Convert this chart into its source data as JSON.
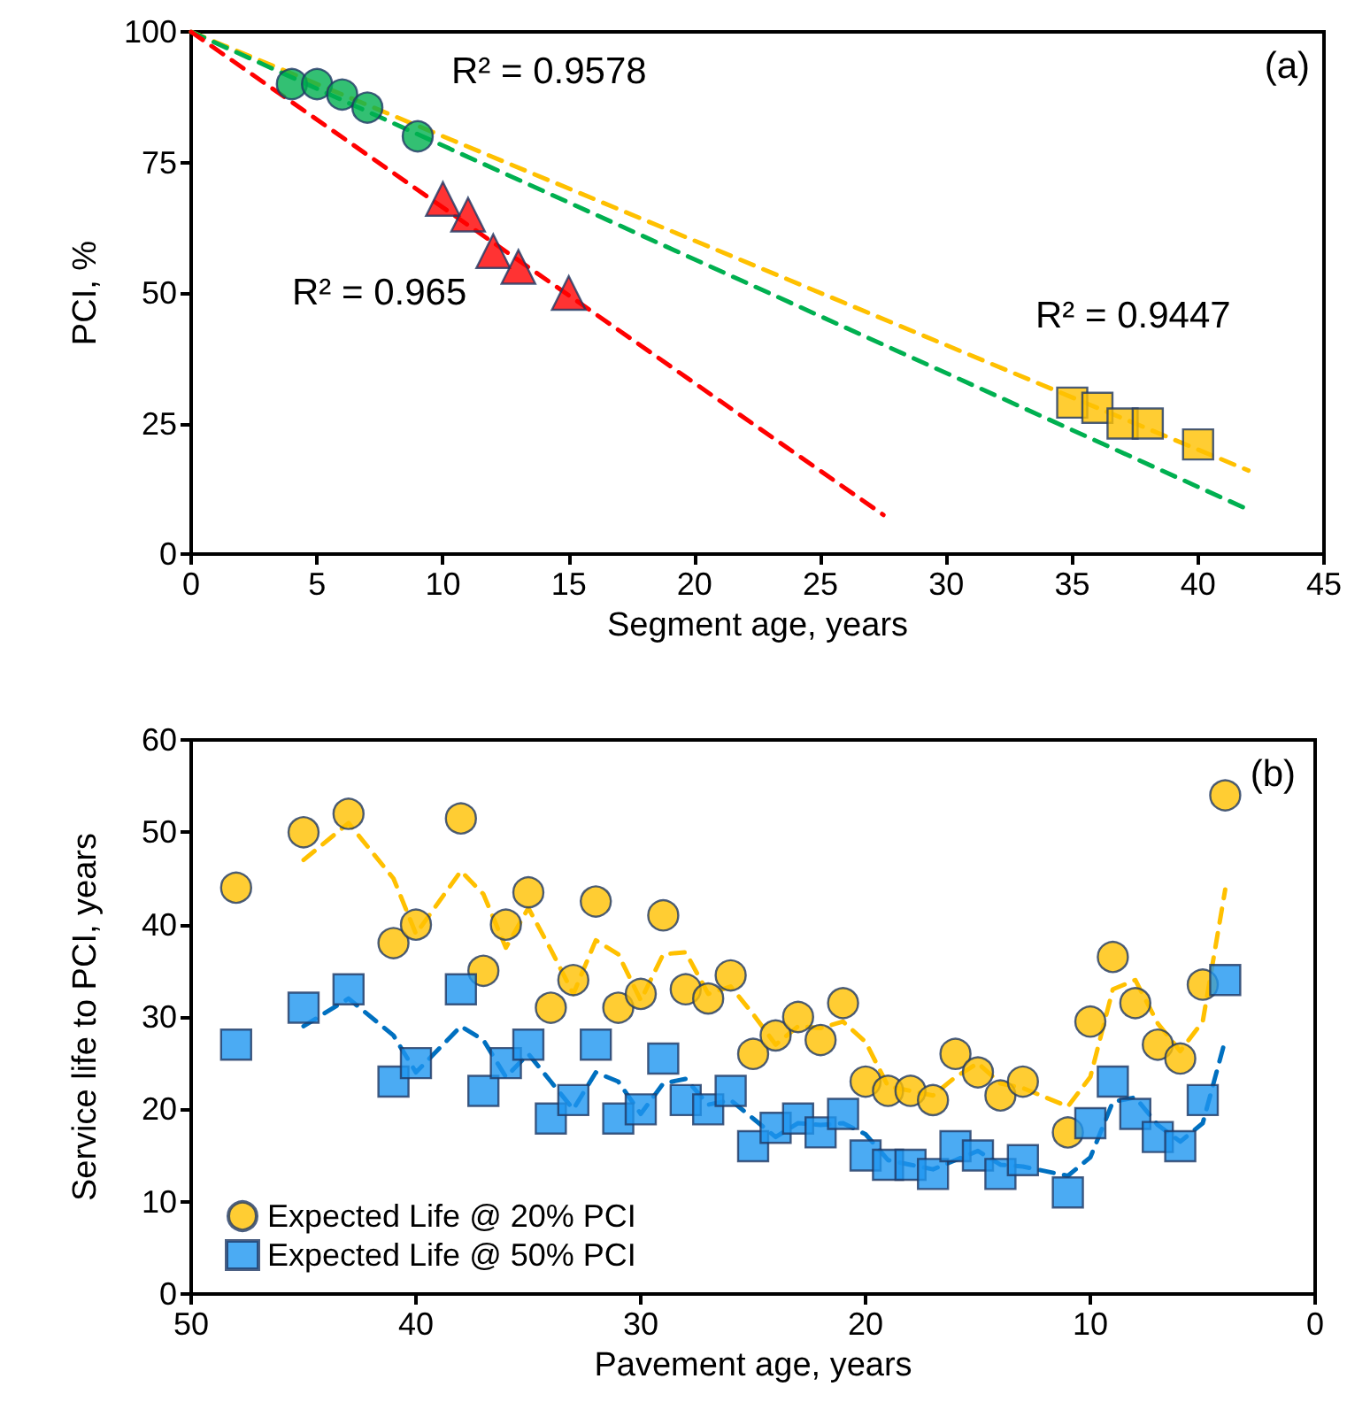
{
  "chart_data": [
    {
      "type": "scatter",
      "title": "(a)",
      "xlabel": "Segment age, years",
      "ylabel": "PCI, %",
      "xlim": [
        0,
        45
      ],
      "xticks": [
        0,
        5,
        10,
        15,
        20,
        25,
        30,
        35,
        40,
        45
      ],
      "ylim": [
        0,
        100
      ],
      "yticks": [
        0,
        25,
        50,
        75,
        100
      ],
      "grid": false,
      "legend": false,
      "series": [
        {
          "type": "line",
          "color": "#ffc000",
          "x": [
            0,
            42
          ],
          "values": [
            100,
            16
          ],
          "marker": "none",
          "line_style": "dashed"
        },
        {
          "type": "line",
          "color": "#00b050",
          "x": [
            0,
            42
          ],
          "values": [
            100,
            8.5
          ],
          "marker": "none",
          "line_style": "dashed"
        },
        {
          "type": "line",
          "color": "#ff0000",
          "x": [
            0,
            27.5
          ],
          "values": [
            100,
            7.5
          ],
          "marker": "none",
          "line_style": "dashed"
        },
        {
          "color": "#00b050",
          "x": [
            4,
            5,
            6,
            7,
            9
          ],
          "values": [
            90,
            90,
            88,
            85.5,
            80
          ],
          "marker": "circle"
        },
        {
          "color": "#ff0000",
          "x": [
            10,
            11,
            12,
            13,
            15
          ],
          "values": [
            68,
            65,
            58,
            55,
            50
          ],
          "marker": "triangle"
        },
        {
          "color": "#ffc000",
          "x": [
            35,
            36,
            37,
            38,
            40
          ],
          "values": [
            29,
            28,
            25,
            25,
            21
          ],
          "marker": "square"
        }
      ],
      "annotations": [
        "R² = 0.9578",
        "R² = 0.965",
        "R² = 0.9447"
      ]
    },
    {
      "type": "scatter",
      "title": "(b)",
      "xlabel": "Pavement age, years",
      "ylabel": "Service life to PCI, years",
      "xlim": [
        50,
        0
      ],
      "xticks": [
        50,
        40,
        30,
        20,
        10,
        0
      ],
      "ylim": [
        0,
        60
      ],
      "yticks": [
        0,
        10,
        20,
        30,
        40,
        50,
        60
      ],
      "grid": false,
      "legend": "bottom left",
      "series": [
        {
          "type": "line",
          "color": "#ffc000",
          "marker": "none",
          "line_style": "dashed",
          "x": [
            45,
            43,
            41,
            40,
            38,
            37,
            36,
            35,
            34,
            33,
            32,
            31,
            30,
            29,
            28,
            27,
            26,
            25,
            24,
            23,
            22,
            21,
            20,
            19,
            18,
            17,
            16,
            15,
            14,
            13,
            11,
            10,
            9,
            8,
            7,
            6,
            5,
            4
          ],
          "values": [
            47,
            51,
            45,
            39,
            45.8,
            43.3,
            37.5,
            41.8,
            37.3,
            32.5,
            38.3,
            36.8,
            31.8,
            36.8,
            37,
            32.5,
            33.3,
            30.3,
            27,
            29,
            28.8,
            29.5,
            27.3,
            22.5,
            22,
            21.5,
            23.5,
            25,
            22.8,
            22.3,
            20.3,
            23.5,
            33,
            34,
            29.3,
            26.3,
            29.5,
            43.8
          ]
        },
        {
          "type": "line",
          "color": "#0070c0",
          "marker": "none",
          "line_style": "dashed",
          "x": [
            45,
            43,
            41,
            40,
            38,
            37,
            36,
            35,
            34,
            33,
            32,
            31,
            30,
            29,
            28,
            27,
            26,
            25,
            24,
            23,
            22,
            21,
            20,
            19,
            18,
            17,
            16,
            15,
            14,
            13,
            11,
            10,
            9,
            8,
            7,
            6,
            5,
            4
          ],
          "values": [
            29,
            32,
            28,
            24,
            29,
            27.5,
            23.5,
            26,
            23,
            20,
            24,
            23,
            19.5,
            22.8,
            23.3,
            20.5,
            21,
            19,
            17,
            18.5,
            18.3,
            18.5,
            17.3,
            14.5,
            14,
            13.5,
            14.5,
            15.5,
            14,
            13.8,
            12.8,
            14.8,
            20.8,
            21.3,
            18.3,
            16.5,
            18.5,
            27.5
          ]
        },
        {
          "name": "Expected Life @ 20% PCI",
          "color": "#ffc000",
          "marker": "circle",
          "x": [
            48,
            45,
            43,
            41,
            40,
            38,
            37,
            36,
            35,
            34,
            33,
            32,
            31,
            30,
            29,
            28,
            27,
            26,
            25,
            24,
            23,
            22,
            21,
            20,
            19,
            18,
            17,
            16,
            15,
            14,
            13,
            11,
            10,
            9,
            8,
            7,
            6,
            5,
            4
          ],
          "values": [
            44,
            50,
            52,
            38,
            40,
            51.5,
            35,
            40,
            43.5,
            31,
            34,
            42.5,
            31,
            32.5,
            41,
            33,
            32,
            34.5,
            26,
            28,
            30,
            27.5,
            31.5,
            23,
            22,
            22,
            21,
            26,
            24,
            21.5,
            23,
            17.5,
            29.5,
            36.5,
            31.5,
            27,
            25.5,
            33.5,
            54
          ]
        },
        {
          "name": "Expected Life @ 50% PCI",
          "color": "#1e96f0",
          "marker": "square",
          "x": [
            48,
            45,
            43,
            41,
            40,
            38,
            37,
            36,
            35,
            34,
            33,
            32,
            31,
            30,
            29,
            28,
            27,
            26,
            25,
            24,
            23,
            22,
            21,
            20,
            19,
            18,
            17,
            16,
            15,
            14,
            13,
            11,
            10,
            9,
            8,
            7,
            6,
            5,
            4
          ],
          "values": [
            27,
            31,
            33,
            23,
            25,
            33,
            22,
            25,
            27,
            19,
            21,
            27,
            19,
            20,
            25.5,
            21,
            20,
            22,
            16,
            18,
            19,
            17.5,
            19.5,
            15,
            14,
            14,
            13,
            16,
            15,
            13,
            14.5,
            11,
            18.5,
            23,
            19.5,
            17,
            16,
            21,
            34
          ]
        }
      ]
    }
  ]
}
